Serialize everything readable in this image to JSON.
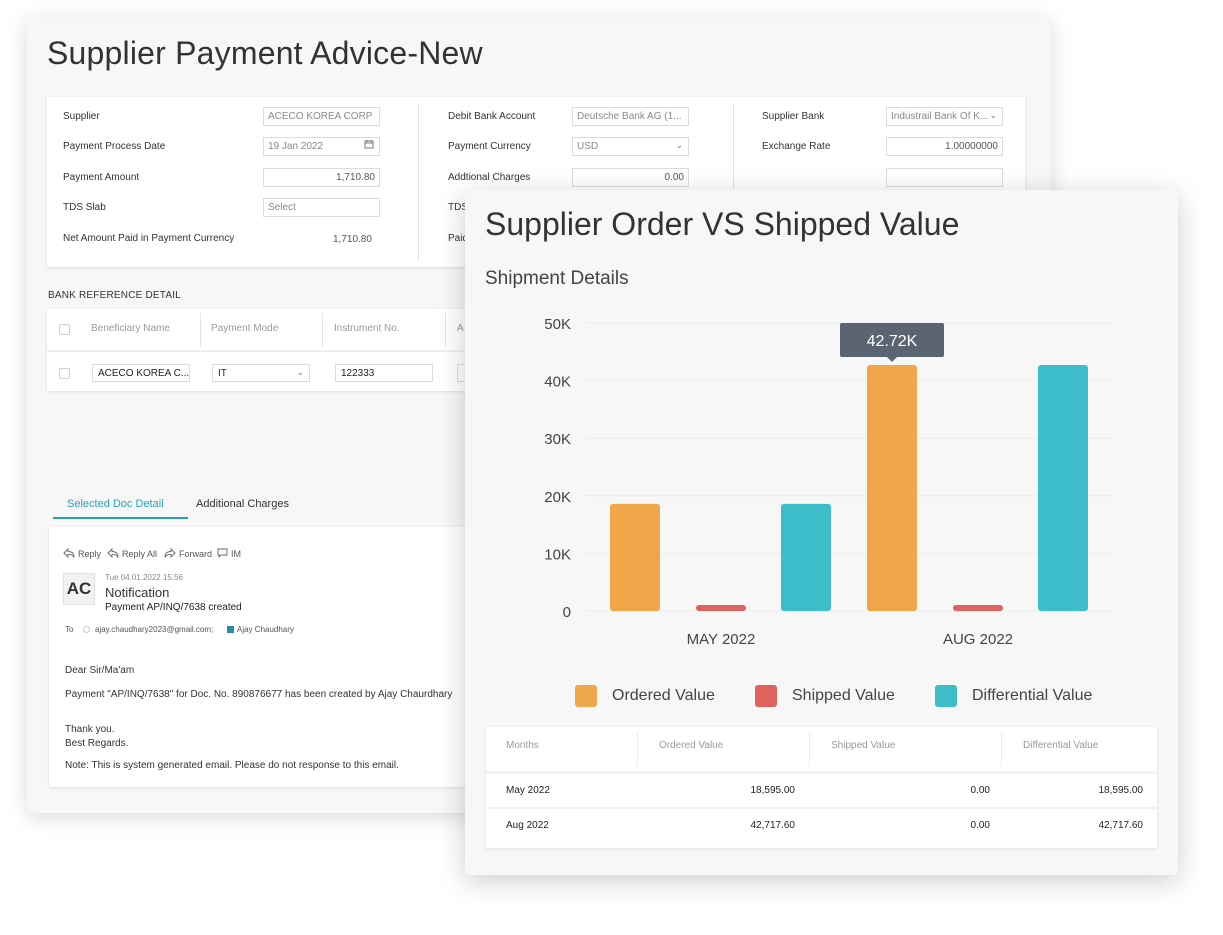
{
  "back": {
    "title": "Supplier Payment Advice-New",
    "form": {
      "col1": [
        {
          "label": "Supplier",
          "value": "ACECO KOREA CORP"
        },
        {
          "label": "Payment Process Date",
          "value": "19 Jan 2022"
        },
        {
          "label": "Payment Amount",
          "value": "1,710.80"
        },
        {
          "label": "TDS Slab",
          "value": "Select"
        },
        {
          "label": "Net Amount Paid in Payment Currency",
          "value": "1,710.80"
        }
      ],
      "col2": [
        {
          "label": "Debit Bank Account",
          "value": "Deutsche Bank AG (1..."
        },
        {
          "label": "Payment Currency",
          "value": "USD"
        },
        {
          "label": "Addtional Charges",
          "value": "0.00"
        },
        {
          "label": "TDS",
          "value": ""
        },
        {
          "label": "Paid",
          "value": ""
        }
      ],
      "col3": [
        {
          "label": "Supplier Bank",
          "value": "Industrail Bank Of K..."
        },
        {
          "label": "Exchange Rate",
          "value": "1.00000000"
        },
        {
          "label": "",
          "value": ""
        }
      ]
    },
    "bank_reference": {
      "title": "BANK REFERENCE DETAIL",
      "headers": [
        "Beneficiary Name",
        "Payment Mode",
        "Instrument No.",
        "A"
      ],
      "row": {
        "beneficiary": "ACECO KOREA C...",
        "mode": "IT",
        "instrument": "122333"
      }
    },
    "tabs": [
      "Selected Doc Detail",
      "Additional Charges"
    ],
    "email": {
      "actions": [
        "Reply",
        "Reply All",
        "Forward",
        "IM"
      ],
      "avatar": "AC",
      "datetime": "Tue 04.01.2022  15:56",
      "sender": "Notification",
      "subject": "Payment AP/INQ/7638 created",
      "to_label": "To",
      "to_email": "ajay.chaudhary2023@gmail.com;",
      "to_name": "Ajay Chaudhary",
      "greeting": "Dear Sir/Ma'am",
      "body": "Payment \"AP/INQ/7638\" for Doc. No. 890876677 has been created by Ajay Chaurdhary",
      "thanks": "Thank you.",
      "regards": "Best Regards.",
      "note": "Note: This is system generated email. Please do not response to this email."
    }
  },
  "front": {
    "title": "Supplier Order VS Shipped Value",
    "subtitle": "Shipment Details",
    "tooltip": "42.72K",
    "table": {
      "headers": [
        "Months",
        "Ordered Value",
        "Shipped Value",
        "Differential Value"
      ],
      "rows": [
        [
          "May 2022",
          "18,595.00",
          "0.00",
          "18,595.00"
        ],
        [
          "Aug 2022",
          "42,717.60",
          "0.00",
          "42,717.60"
        ]
      ]
    }
  },
  "chart_data": {
    "type": "bar",
    "title": "Shipment Details",
    "categories": [
      "MAY 2022",
      "AUG 2022"
    ],
    "series": [
      {
        "name": "Ordered Value",
        "values": [
          18595.0,
          42717.6
        ],
        "color": "#f0a74a"
      },
      {
        "name": "Shipped Value",
        "values": [
          0,
          0
        ],
        "color": "#e0625e"
      },
      {
        "name": "Differential Value",
        "values": [
          18595.0,
          42717.6
        ],
        "color": "#3dbdc9"
      }
    ],
    "yticks": [
      "0",
      "10K",
      "20K",
      "30K",
      "40K",
      "50K"
    ],
    "ylim": [
      0,
      50000
    ],
    "grid": true,
    "legend": "bottom"
  }
}
